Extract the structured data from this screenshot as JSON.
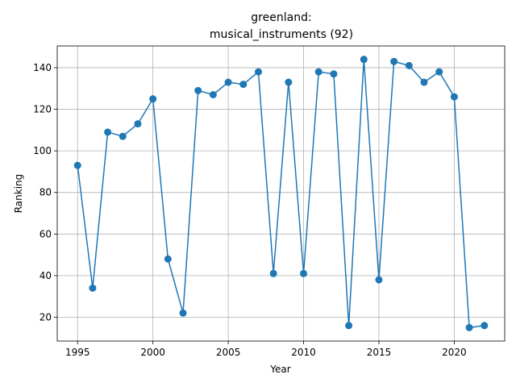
{
  "chart_data": {
    "type": "line",
    "title_line1": "greenland:",
    "title_line2": "musical_instruments (92)",
    "xlabel": "Year",
    "ylabel": "Ranking",
    "xlim": [
      1993.65,
      2023.35
    ],
    "ylim": [
      8.55,
      150.45
    ],
    "xticks": [
      1995,
      2000,
      2005,
      2010,
      2015,
      2020
    ],
    "yticks": [
      20,
      40,
      60,
      80,
      100,
      120,
      140
    ],
    "grid": true,
    "color": "#1f77b4",
    "marker": "circle",
    "x": [
      1995,
      1996,
      1997,
      1998,
      1999,
      2000,
      2001,
      2002,
      2003,
      2004,
      2005,
      2006,
      2007,
      2008,
      2009,
      2010,
      2011,
      2012,
      2013,
      2014,
      2015,
      2016,
      2017,
      2018,
      2019,
      2020,
      2021,
      2022
    ],
    "y": [
      93,
      34,
      109,
      107,
      113,
      125,
      48,
      22,
      129,
      127,
      133,
      132,
      138,
      41,
      133,
      41,
      138,
      137,
      16,
      144,
      38,
      143,
      141,
      133,
      138,
      126,
      15,
      16
    ]
  }
}
